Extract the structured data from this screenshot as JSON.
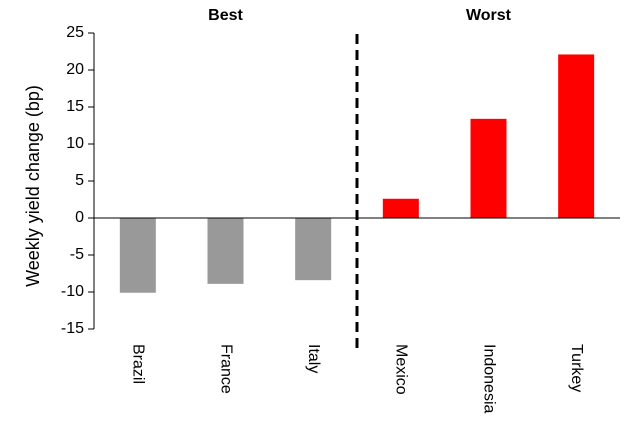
{
  "chart_data": {
    "type": "bar",
    "title": "",
    "xlabel": "",
    "ylabel": "Weekly yield change (bp)",
    "ylim": [
      -15,
      25
    ],
    "yticks": [
      25,
      20,
      15,
      10,
      5,
      0,
      -5,
      -10,
      -15
    ],
    "grid": false,
    "legend": "none",
    "categories": [
      "Brazil",
      "France",
      "Italy",
      "Mexico",
      "Indonesia",
      "Turkey"
    ],
    "values": [
      -10.1,
      -8.9,
      -8.4,
      2.6,
      13.4,
      22.1
    ],
    "groups": [
      {
        "label": "Best",
        "categories": [
          "Brazil",
          "France",
          "Italy"
        ],
        "color": "#999999"
      },
      {
        "label": "Worst",
        "categories": [
          "Mexico",
          "Indonesia",
          "Turkey"
        ],
        "color": "#ff0000"
      }
    ],
    "separator": "dashed vertical line between Italy and Mexico"
  }
}
